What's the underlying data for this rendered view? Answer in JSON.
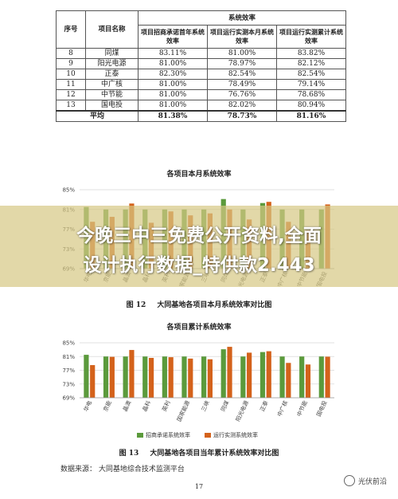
{
  "table": {
    "col_no": "序号",
    "col_name": "项目名称",
    "group_header": "系统效率",
    "sub_headers": [
      "项目招商承诺首年系统效率",
      "项目运行实测本月系统效率",
      "项目运行实测累计系统效率"
    ],
    "rows": [
      {
        "no": "8",
        "name": "同煤",
        "v1": "83.11%",
        "v2": "81.00%",
        "v3": "83.82%"
      },
      {
        "no": "9",
        "name": "阳光电源",
        "v1": "81.00%",
        "v2": "78.97%",
        "v3": "82.12%"
      },
      {
        "no": "10",
        "name": "正泰",
        "v1": "82.30%",
        "v2": "82.54%",
        "v3": "82.54%"
      },
      {
        "no": "11",
        "name": "中广核",
        "v1": "81.00%",
        "v2": "78.49%",
        "v3": "79.14%"
      },
      {
        "no": "12",
        "name": "中节能",
        "v1": "81.00%",
        "v2": "76.76%",
        "v3": "78.68%"
      },
      {
        "no": "13",
        "name": "国电投",
        "v1": "81.00%",
        "v2": "82.02%",
        "v3": "80.94%"
      }
    ],
    "avg": {
      "label": "平均",
      "v1": "81.38%",
      "v2": "78.73%",
      "v3": "81.16%"
    }
  },
  "chart_data": [
    {
      "type": "bar",
      "title": "各项目本月系统效率",
      "caption_num": "图 12",
      "caption": "大同基地各项目本月系统效率对比图",
      "categories": [
        "华电",
        "京能",
        "晶澳",
        "晶科",
        "英利",
        "国家能源",
        "三峡",
        "同煤",
        "阳光电源",
        "正泰",
        "中广核",
        "中节能",
        "国电投"
      ],
      "ylim": [
        69,
        85
      ],
      "yticks": [
        "85%",
        "81%",
        "77%",
        "73%",
        "69%"
      ],
      "series": [
        {
          "name": "招商承诺系统效率",
          "values": [
            81.5,
            81,
            81,
            81,
            81,
            81,
            81,
            83.11,
            81,
            82.3,
            81,
            81,
            81
          ]
        },
        {
          "name": "运行实测系统效率",
          "values": [
            78.5,
            79.5,
            82.2,
            78.3,
            80.6,
            79.8,
            80.2,
            81,
            78.97,
            82.54,
            78.49,
            76.76,
            82.02
          ]
        }
      ]
    },
    {
      "type": "bar",
      "title": "各项目累计系统效率",
      "caption_num": "图 13",
      "caption": "大同基地各项目当年累计系统效率对比图",
      "categories": [
        "华电",
        "京能",
        "晶澳",
        "晶科",
        "英利",
        "国家能源",
        "三峡",
        "同煤",
        "阳光电源",
        "正泰",
        "中广核",
        "中节能",
        "国电投"
      ],
      "ylim": [
        69,
        85
      ],
      "yticks": [
        "85%",
        "81%",
        "77%",
        "73%",
        "69%"
      ],
      "series": [
        {
          "name": "招商承诺系统效率",
          "values": [
            81.5,
            81,
            81,
            81,
            81,
            81,
            81,
            83.11,
            81,
            82.3,
            81,
            81,
            81
          ]
        },
        {
          "name": "运行实测系统效率",
          "values": [
            78.5,
            80.9,
            82.9,
            80.6,
            80.8,
            80.4,
            80.2,
            83.82,
            82.12,
            82.54,
            79.14,
            78.68,
            80.94
          ]
        }
      ]
    }
  ],
  "colors": {
    "series1": "#5b9a3c",
    "series2": "#d4621b"
  },
  "source": "数据来源：    大同基地综合技术监测平台",
  "page_number": "17",
  "watermark": {
    "brand": "光伏前沿"
  },
  "overlay": {
    "line1": "今晚三中三免费公开资料,全面",
    "line2": "设计执行数据_特供款2.443"
  }
}
